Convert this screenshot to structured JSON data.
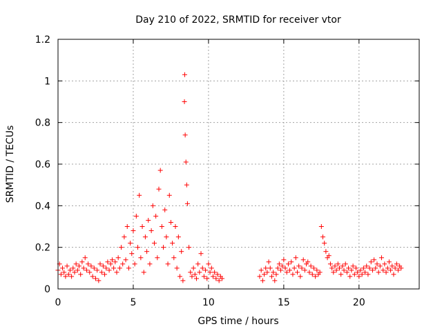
{
  "chart_data": {
    "type": "scatter",
    "title": "Day 210 of 2022, SRMTID for receiver vtor",
    "xlabel": "GPS time / hours",
    "ylabel": "SRMTID / TECUs",
    "xlim": [
      0,
      24
    ],
    "ylim": [
      0,
      1.2
    ],
    "x_ticks": [
      0,
      5,
      10,
      15,
      20
    ],
    "y_ticks": [
      0,
      0.2,
      0.4,
      0.6,
      0.8,
      1,
      1.2
    ],
    "x_tick_labels": [
      "0",
      "5",
      "10",
      "15",
      "20"
    ],
    "y_tick_labels": [
      "0",
      "0.2",
      "0.4",
      "0.6",
      "0.8",
      "1",
      "1.2"
    ],
    "grid": true,
    "marker": "+",
    "color": "#ff0000",
    "series": [
      {
        "name": "SRMTID",
        "points": [
          [
            0.0,
            0.09
          ],
          [
            0.1,
            0.12
          ],
          [
            0.2,
            0.07
          ],
          [
            0.3,
            0.1
          ],
          [
            0.4,
            0.08
          ],
          [
            0.5,
            0.06
          ],
          [
            0.6,
            0.11
          ],
          [
            0.7,
            0.07
          ],
          [
            0.8,
            0.09
          ],
          [
            0.9,
            0.06
          ],
          [
            1.0,
            0.1
          ],
          [
            1.1,
            0.08
          ],
          [
            1.2,
            0.12
          ],
          [
            1.3,
            0.09
          ],
          [
            1.4,
            0.11
          ],
          [
            1.5,
            0.07
          ],
          [
            1.6,
            0.13
          ],
          [
            1.7,
            0.1
          ],
          [
            1.8,
            0.15
          ],
          [
            1.9,
            0.09
          ],
          [
            2.0,
            0.12
          ],
          [
            2.1,
            0.08
          ],
          [
            2.2,
            0.11
          ],
          [
            2.3,
            0.06
          ],
          [
            2.4,
            0.1
          ],
          [
            2.5,
            0.05
          ],
          [
            2.6,
            0.09
          ],
          [
            2.7,
            0.04
          ],
          [
            2.8,
            0.12
          ],
          [
            2.9,
            0.08
          ],
          [
            3.0,
            0.11
          ],
          [
            3.1,
            0.07
          ],
          [
            3.2,
            0.1
          ],
          [
            3.3,
            0.13
          ],
          [
            3.4,
            0.09
          ],
          [
            3.5,
            0.12
          ],
          [
            3.6,
            0.14
          ],
          [
            3.7,
            0.1
          ],
          [
            3.8,
            0.13
          ],
          [
            3.9,
            0.08
          ],
          [
            4.0,
            0.15
          ],
          [
            4.1,
            0.1
          ],
          [
            4.2,
            0.2
          ],
          [
            4.3,
            0.12
          ],
          [
            4.4,
            0.25
          ],
          [
            4.5,
            0.14
          ],
          [
            4.6,
            0.3
          ],
          [
            4.7,
            0.1
          ],
          [
            4.8,
            0.22
          ],
          [
            4.9,
            0.17
          ],
          [
            5.0,
            0.28
          ],
          [
            5.1,
            0.12
          ],
          [
            5.2,
            0.35
          ],
          [
            5.3,
            0.2
          ],
          [
            5.4,
            0.45
          ],
          [
            5.5,
            0.15
          ],
          [
            5.6,
            0.3
          ],
          [
            5.7,
            0.08
          ],
          [
            5.8,
            0.25
          ],
          [
            5.9,
            0.18
          ],
          [
            6.0,
            0.33
          ],
          [
            6.1,
            0.12
          ],
          [
            6.2,
            0.28
          ],
          [
            6.3,
            0.4
          ],
          [
            6.4,
            0.22
          ],
          [
            6.5,
            0.35
          ],
          [
            6.6,
            0.15
          ],
          [
            6.7,
            0.48
          ],
          [
            6.8,
            0.57
          ],
          [
            6.9,
            0.3
          ],
          [
            7.0,
            0.2
          ],
          [
            7.1,
            0.38
          ],
          [
            7.2,
            0.25
          ],
          [
            7.3,
            0.12
          ],
          [
            7.4,
            0.45
          ],
          [
            7.5,
            0.32
          ],
          [
            7.6,
            0.22
          ],
          [
            7.7,
            0.15
          ],
          [
            7.8,
            0.3
          ],
          [
            7.9,
            0.1
          ],
          [
            8.0,
            0.25
          ],
          [
            8.1,
            0.06
          ],
          [
            8.2,
            0.18
          ],
          [
            8.3,
            0.04
          ],
          [
            8.4,
            0.9
          ],
          [
            8.42,
            1.03
          ],
          [
            8.45,
            0.74
          ],
          [
            8.5,
            0.61
          ],
          [
            8.55,
            0.5
          ],
          [
            8.6,
            0.41
          ],
          [
            8.7,
            0.2
          ],
          [
            8.8,
            0.08
          ],
          [
            8.9,
            0.06
          ],
          [
            9.0,
            0.1
          ],
          [
            9.1,
            0.07
          ],
          [
            9.2,
            0.05
          ],
          [
            9.3,
            0.12
          ],
          [
            9.4,
            0.08
          ],
          [
            9.5,
            0.17
          ],
          [
            9.6,
            0.1
          ],
          [
            9.7,
            0.06
          ],
          [
            9.8,
            0.09
          ],
          [
            9.9,
            0.05
          ],
          [
            10.0,
            0.12
          ],
          [
            10.1,
            0.08
          ],
          [
            10.2,
            0.1
          ],
          [
            10.3,
            0.06
          ],
          [
            10.4,
            0.08
          ],
          [
            10.5,
            0.05
          ],
          [
            10.6,
            0.07
          ],
          [
            10.7,
            0.04
          ],
          [
            10.8,
            0.06
          ],
          [
            10.9,
            0.05
          ],
          [
            13.4,
            0.06
          ],
          [
            13.5,
            0.09
          ],
          [
            13.6,
            0.04
          ],
          [
            13.7,
            0.07
          ],
          [
            13.8,
            0.1
          ],
          [
            13.9,
            0.08
          ],
          [
            14.0,
            0.13
          ],
          [
            14.1,
            0.1
          ],
          [
            14.2,
            0.06
          ],
          [
            14.3,
            0.08
          ],
          [
            14.4,
            0.04
          ],
          [
            14.5,
            0.07
          ],
          [
            14.6,
            0.1
          ],
          [
            14.7,
            0.12
          ],
          [
            14.8,
            0.09
          ],
          [
            14.9,
            0.11
          ],
          [
            15.0,
            0.14
          ],
          [
            15.1,
            0.1
          ],
          [
            15.2,
            0.08
          ],
          [
            15.3,
            0.12
          ],
          [
            15.4,
            0.09
          ],
          [
            15.5,
            0.13
          ],
          [
            15.6,
            0.07
          ],
          [
            15.7,
            0.1
          ],
          [
            15.8,
            0.15
          ],
          [
            15.9,
            0.08
          ],
          [
            16.0,
            0.11
          ],
          [
            16.1,
            0.06
          ],
          [
            16.2,
            0.1
          ],
          [
            16.3,
            0.14
          ],
          [
            16.4,
            0.09
          ],
          [
            16.5,
            0.12
          ],
          [
            16.6,
            0.13
          ],
          [
            16.7,
            0.08
          ],
          [
            16.8,
            0.11
          ],
          [
            16.9,
            0.07
          ],
          [
            17.0,
            0.1
          ],
          [
            17.1,
            0.06
          ],
          [
            17.2,
            0.09
          ],
          [
            17.3,
            0.07
          ],
          [
            17.4,
            0.08
          ],
          [
            17.5,
            0.3
          ],
          [
            17.6,
            0.25
          ],
          [
            17.7,
            0.22
          ],
          [
            17.8,
            0.18
          ],
          [
            17.9,
            0.15
          ],
          [
            18.0,
            0.16
          ],
          [
            18.1,
            0.12
          ],
          [
            18.2,
            0.1
          ],
          [
            18.3,
            0.08
          ],
          [
            18.4,
            0.11
          ],
          [
            18.5,
            0.09
          ],
          [
            18.6,
            0.12
          ],
          [
            18.7,
            0.1
          ],
          [
            18.8,
            0.07
          ],
          [
            18.9,
            0.11
          ],
          [
            19.0,
            0.09
          ],
          [
            19.1,
            0.12
          ],
          [
            19.2,
            0.08
          ],
          [
            19.3,
            0.1
          ],
          [
            19.4,
            0.06
          ],
          [
            19.5,
            0.09
          ],
          [
            19.6,
            0.11
          ],
          [
            19.7,
            0.07
          ],
          [
            19.8,
            0.1
          ],
          [
            19.9,
            0.08
          ],
          [
            20.0,
            0.06
          ],
          [
            20.1,
            0.09
          ],
          [
            20.2,
            0.07
          ],
          [
            20.3,
            0.1
          ],
          [
            20.4,
            0.08
          ],
          [
            20.5,
            0.11
          ],
          [
            20.6,
            0.07
          ],
          [
            20.7,
            0.1
          ],
          [
            20.8,
            0.13
          ],
          [
            20.9,
            0.09
          ],
          [
            21.0,
            0.14
          ],
          [
            21.1,
            0.1
          ],
          [
            21.2,
            0.12
          ],
          [
            21.3,
            0.08
          ],
          [
            21.4,
            0.11
          ],
          [
            21.5,
            0.15
          ],
          [
            21.6,
            0.09
          ],
          [
            21.7,
            0.12
          ],
          [
            21.8,
            0.08
          ],
          [
            21.9,
            0.1
          ],
          [
            22.0,
            0.13
          ],
          [
            22.1,
            0.09
          ],
          [
            22.2,
            0.11
          ],
          [
            22.3,
            0.07
          ],
          [
            22.4,
            0.1
          ],
          [
            22.5,
            0.12
          ],
          [
            22.6,
            0.09
          ],
          [
            22.7,
            0.11
          ],
          [
            22.8,
            0.1
          ]
        ]
      }
    ]
  }
}
